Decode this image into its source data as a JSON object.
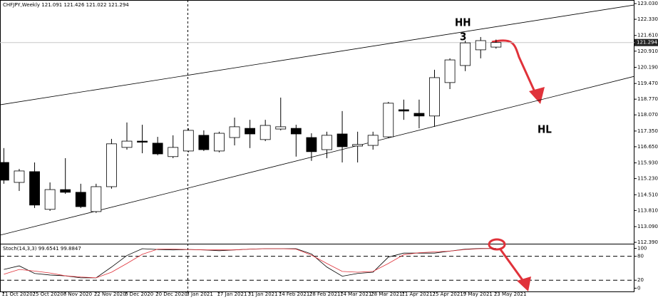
{
  "chart_data": [
    {
      "type": "candlestick",
      "title": "CHFJPY,Weekly  121.091 121.426 121.022 121.294",
      "categories": [
        "11 Oct 2020",
        null,
        "25 Oct 2020",
        null,
        "8 Nov 2020",
        null,
        "22 Nov 2020",
        null,
        "6 Dec 2020",
        null,
        "20 Dec 2020",
        null,
        "3 Jan 2021",
        null,
        "17 Jan 2021",
        null,
        "31 Jan 2021",
        null,
        "14 Feb 2021",
        null,
        "28 Feb 2021",
        null,
        "14 Mar 2021",
        null,
        "28 Mar 2021",
        null,
        "11 Apr 2021",
        null,
        "25 Apr 2021",
        null,
        "9 May 2021",
        null,
        "23 May 2021"
      ],
      "open": [
        115.95,
        115.06,
        115.54,
        113.86,
        114.74,
        114.62,
        113.76,
        114.87,
        116.62,
        116.9,
        116.81,
        116.21,
        116.46,
        117.16,
        116.46,
        117.06,
        117.47,
        116.97,
        117.44,
        117.47,
        117.06,
        116.52,
        117.22,
        116.68,
        116.71,
        117.09,
        118.3,
        118.14,
        118.02,
        119.51,
        120.27,
        120.97,
        121.091
      ],
      "high": [
        116.59,
        115.66,
        115.95,
        115.06,
        116.14,
        115.0,
        115.0,
        117.0,
        117.73,
        117.63,
        117.09,
        117.16,
        117.47,
        117.38,
        117.32,
        117.95,
        117.85,
        117.85,
        118.84,
        117.63,
        117.25,
        117.32,
        118.24,
        117.32,
        117.32,
        118.65,
        118.75,
        118.75,
        120.08,
        120.59,
        121.38,
        121.54,
        121.426
      ],
      "low": [
        115.0,
        114.68,
        113.92,
        113.79,
        114.55,
        113.92,
        113.7,
        114.78,
        116.52,
        116.36,
        116.27,
        116.14,
        116.4,
        116.46,
        116.4,
        116.71,
        116.59,
        116.9,
        117.38,
        116.21,
        116.02,
        116.14,
        115.95,
        115.95,
        116.52,
        117.03,
        117.85,
        117.47,
        117.54,
        119.22,
        120.02,
        120.59,
        121.022
      ],
      "close": [
        115.16,
        115.57,
        114.05,
        114.74,
        114.62,
        113.98,
        114.87,
        116.78,
        116.9,
        116.87,
        116.33,
        116.62,
        117.38,
        116.52,
        117.25,
        117.54,
        117.22,
        117.6,
        117.54,
        117.22,
        116.43,
        117.16,
        116.65,
        116.75,
        117.16,
        118.59,
        118.24,
        118.02,
        119.73,
        120.52,
        121.28,
        121.38,
        121.294
      ],
      "xlim": [
        -0.25,
        41
      ],
      "ylim": [
        112.36,
        123.19
      ],
      "yticks": [
        {
          "value": 123.03,
          "label": "123.030"
        },
        {
          "value": 122.33,
          "label": "122.330"
        },
        {
          "value": 121.61,
          "label": "121.610"
        },
        {
          "value": 120.91,
          "label": "120.910"
        },
        {
          "value": 120.19,
          "label": "120.190"
        },
        {
          "value": 119.47,
          "label": "119.470"
        },
        {
          "value": 118.77,
          "label": "118.770"
        },
        {
          "value": 118.07,
          "label": "118.070"
        },
        {
          "value": 117.35,
          "label": "117.350"
        },
        {
          "value": 116.65,
          "label": "116.650"
        },
        {
          "value": 115.93,
          "label": "115.930"
        },
        {
          "value": 115.23,
          "label": "115.230"
        },
        {
          "value": 114.51,
          "label": "114.510"
        },
        {
          "value": 113.81,
          "label": "113.810"
        },
        {
          "value": 113.09,
          "label": "113.090"
        },
        {
          "value": 112.39,
          "label": "112.390"
        }
      ],
      "current_price": 121.294,
      "trendlines": [
        {
          "x": [
            -0.25,
            41
          ],
          "y": [
            118.52,
            122.97
          ]
        },
        {
          "x": [
            -0.25,
            41
          ],
          "y": [
            112.71,
            119.79
          ]
        }
      ],
      "annotations": [
        {
          "text": "HH",
          "color": "#1fa3d8"
        },
        {
          "text": "3",
          "color": "#e0323a"
        },
        {
          "text": "HL",
          "color": "#1fa3d8"
        }
      ]
    },
    {
      "type": "line",
      "title": "Stoch(14,3,3) 99.6541 99.8847",
      "ylim": [
        -10,
        108
      ],
      "yticks": [
        100,
        80,
        20,
        0
      ],
      "series": [
        {
          "name": "Main",
          "color": "#000000",
          "values": [
            47,
            56,
            37,
            33,
            31,
            26,
            26,
            53,
            82,
            99,
            97,
            96,
            97,
            96,
            94,
            96,
            98,
            99,
            99,
            99,
            86,
            53,
            30,
            37,
            40,
            78,
            88,
            88,
            88,
            93,
            98,
            99.6,
            99.6541
          ]
        },
        {
          "name": "Signal",
          "color": "#e0323a",
          "values": [
            35,
            47,
            43,
            38,
            31,
            28,
            26,
            40,
            62,
            85,
            98,
            98,
            97,
            96,
            96,
            96,
            98,
            99,
            99,
            98,
            83,
            62,
            42,
            40,
            42,
            62,
            84,
            89,
            91,
            93,
            97,
            99,
            99.8847
          ]
        }
      ]
    }
  ]
}
